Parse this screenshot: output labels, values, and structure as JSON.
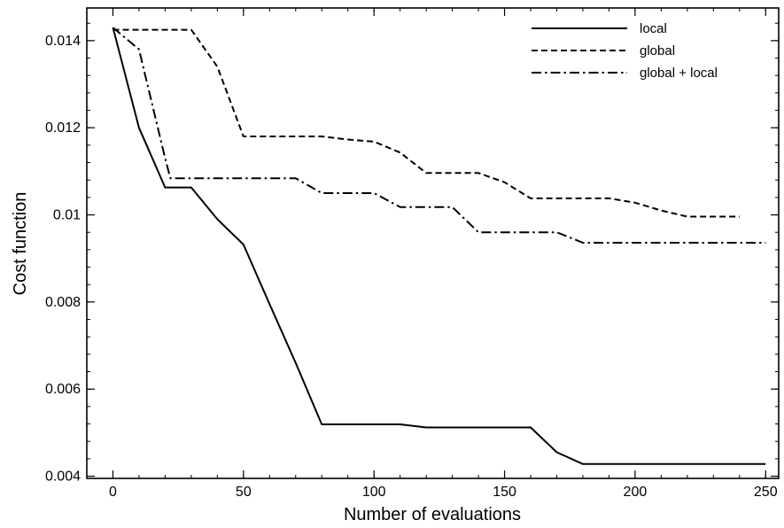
{
  "chart_data": {
    "type": "line",
    "title": "",
    "xlabel": "Number of evaluations",
    "ylabel": "Cost function",
    "xlim": [
      -10,
      255
    ],
    "ylim": [
      0.00395,
      0.01475
    ],
    "grid": false,
    "legend_position": "top-right",
    "x_ticks": [
      {
        "value": 0,
        "label": "0"
      },
      {
        "value": 50,
        "label": "50"
      },
      {
        "value": 100,
        "label": "100"
      },
      {
        "value": 150,
        "label": "150"
      },
      {
        "value": 200,
        "label": "200"
      },
      {
        "value": 250,
        "label": "250"
      }
    ],
    "x_minor_step": 10,
    "y_ticks": [
      {
        "value": 0.004,
        "label": "0.004"
      },
      {
        "value": 0.006,
        "label": "0.006"
      },
      {
        "value": 0.008,
        "label": "0.008"
      },
      {
        "value": 0.01,
        "label": "0.01"
      },
      {
        "value": 0.012,
        "label": "0.012"
      },
      {
        "value": 0.014,
        "label": "0.014"
      }
    ],
    "y_minor_step": 0.0004,
    "series": [
      {
        "name": "local",
        "style": "solid",
        "x": [
          0,
          10,
          20,
          30,
          40,
          50,
          60,
          70,
          80,
          90,
          100,
          110,
          120,
          130,
          140,
          150,
          160,
          170,
          180,
          190,
          200,
          210,
          220,
          230,
          240,
          250
        ],
        "y": [
          0.0143,
          0.012,
          0.01063,
          0.01063,
          0.0099,
          0.00932,
          0.00795,
          0.0066,
          0.00519,
          0.00519,
          0.00519,
          0.00519,
          0.00512,
          0.00512,
          0.00512,
          0.00512,
          0.00512,
          0.00455,
          0.00428,
          0.00428,
          0.00428,
          0.00428,
          0.00428,
          0.00428,
          0.00428,
          0.00428
        ]
      },
      {
        "name": "global",
        "style": "dashed",
        "x": [
          0,
          10,
          20,
          30,
          40,
          50,
          60,
          70,
          80,
          90,
          100,
          110,
          120,
          130,
          140,
          150,
          160,
          170,
          180,
          190,
          200,
          210,
          220,
          230,
          240
        ],
        "y": [
          0.01425,
          0.01425,
          0.01425,
          0.01425,
          0.0134,
          0.0118,
          0.0118,
          0.0118,
          0.0118,
          0.01173,
          0.01168,
          0.01143,
          0.01096,
          0.01096,
          0.01096,
          0.01075,
          0.01038,
          0.01038,
          0.01038,
          0.01038,
          0.01028,
          0.0101,
          0.00996,
          0.00996,
          0.00996
        ]
      },
      {
        "name": "global + local",
        "style": "dashdot",
        "x": [
          0,
          10,
          20,
          22,
          30,
          40,
          50,
          60,
          70,
          80,
          90,
          100,
          110,
          120,
          130,
          140,
          150,
          160,
          170,
          180,
          190,
          200,
          210,
          220,
          230,
          240,
          250
        ],
        "y": [
          0.0143,
          0.0138,
          0.0113,
          0.01084,
          0.01084,
          0.01084,
          0.01084,
          0.01084,
          0.01084,
          0.0105,
          0.0105,
          0.0105,
          0.01018,
          0.01018,
          0.01018,
          0.0096,
          0.0096,
          0.0096,
          0.0096,
          0.00936,
          0.00936,
          0.00936,
          0.00936,
          0.00936,
          0.00936,
          0.00936,
          0.00936
        ]
      }
    ]
  }
}
